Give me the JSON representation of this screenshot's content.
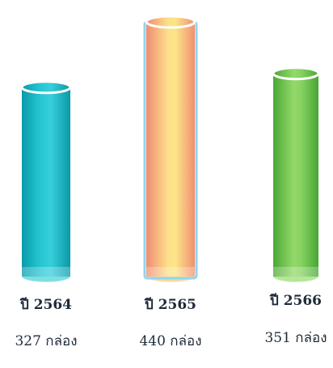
{
  "chart_data": {
    "type": "bar",
    "title": "",
    "xlabel": "",
    "ylabel": "",
    "categories": [
      "ปี 2564",
      "ปี 2565",
      "ปี 2566"
    ],
    "values": [
      327,
      440,
      351
    ],
    "value_labels": [
      "327 กล่อง",
      "440 กล่อง",
      "351 กล่อง"
    ],
    "unit": "กล่อง",
    "ylim": [
      0,
      440
    ],
    "grid": false,
    "legend": "none",
    "colors": [
      "#16b6c4",
      "#f7b07a",
      "#6cc24a"
    ]
  }
}
